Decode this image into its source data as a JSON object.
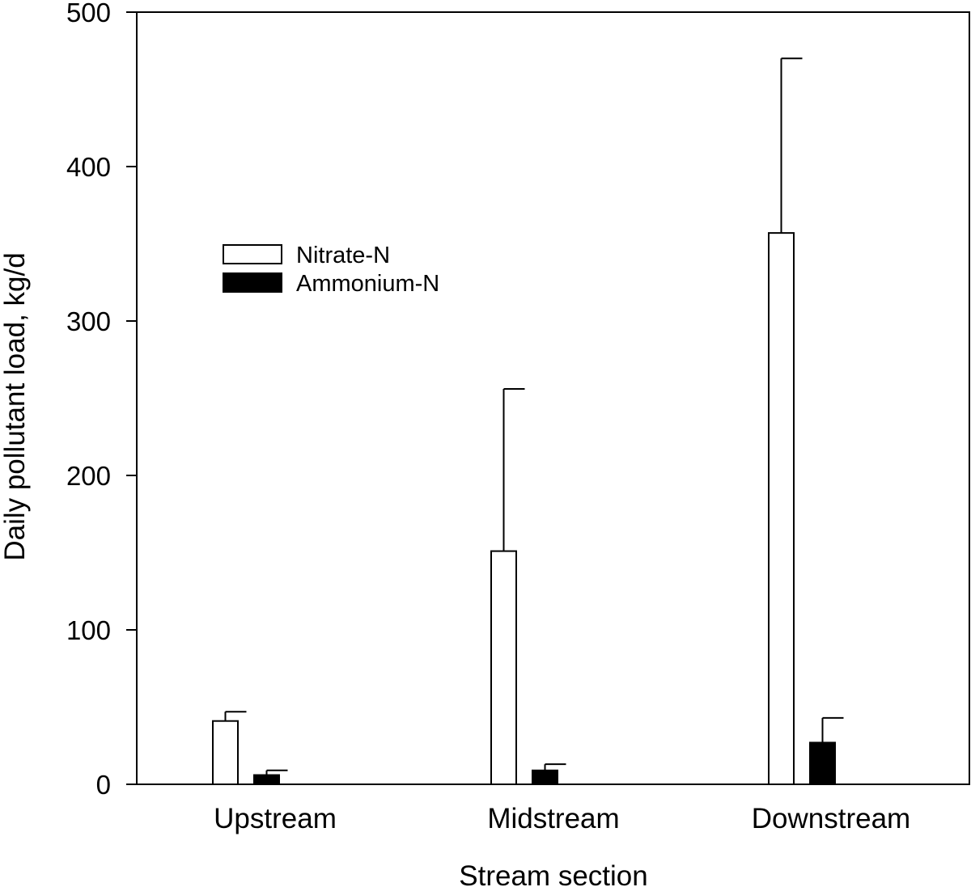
{
  "chart_data": {
    "type": "bar",
    "title": "",
    "xlabel": "Stream section",
    "ylabel": "Daily pollutant load, kg/d",
    "categories": [
      "Upstream",
      "Midstream",
      "Downstream"
    ],
    "ylim": [
      0,
      500
    ],
    "yticks": [
      0,
      100,
      200,
      300,
      400,
      500
    ],
    "grid": false,
    "legend_position": "upper-left",
    "series": [
      {
        "name": "Nitrate-N",
        "fill": "#ffffff",
        "values": [
          41,
          151,
          357
        ],
        "error": [
          6,
          105,
          113
        ]
      },
      {
        "name": "Ammonium-N",
        "fill": "#000000",
        "values": [
          6,
          9,
          27
        ],
        "error": [
          3,
          4,
          16
        ]
      }
    ]
  }
}
